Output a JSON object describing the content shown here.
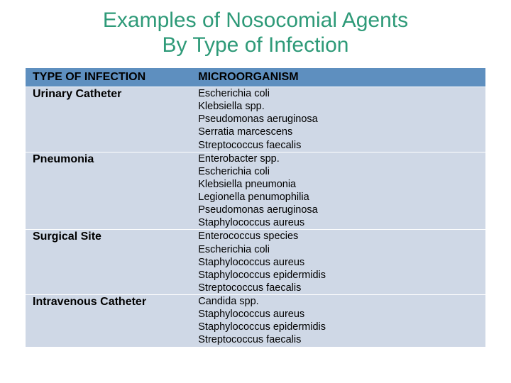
{
  "title": {
    "line1": "Examples of Nosocomial Agents",
    "line2": "By Type of Infection",
    "color": "#2e9a78",
    "fontsize": 30,
    "fontweight": "400"
  },
  "table": {
    "header_bg": "#5e8fbf",
    "header_text_color": "#000000",
    "row_bg": "#cfd8e6",
    "row_text_color": "#000000",
    "label_fontsize": 16,
    "cell_fontsize": 14.5,
    "columns": [
      "TYPE OF INFECTION",
      "MICROORGANISM"
    ],
    "rows": [
      {
        "label": "Urinary Catheter",
        "organisms": [
          "Escherichia coli",
          "Klebsiella spp.",
          "Pseudomonas aeruginosa",
          "Serratia marcescens",
          "Streptococcus faecalis"
        ]
      },
      {
        "label": "Pneumonia",
        "organisms": [
          "Enterobacter spp.",
          "Escherichia coli",
          "Klebsiella pneumonia",
          "Legionella penumophilia",
          "Pseudomonas aeruginosa",
          "Staphylococcus aureus"
        ]
      },
      {
        "label": "Surgical Site",
        "organisms": [
          "Enterococcus species",
          "Escherichia coli",
          "Staphylococcus aureus",
          "Staphylococcus epidermidis",
          "Streptococcus faecalis"
        ]
      },
      {
        "label": "Intravenous Catheter",
        "organisms": [
          "Candida spp.",
          "Staphylococcus aureus",
          "Staphylococcus epidermidis",
          "Streptococcus faecalis"
        ]
      }
    ]
  }
}
